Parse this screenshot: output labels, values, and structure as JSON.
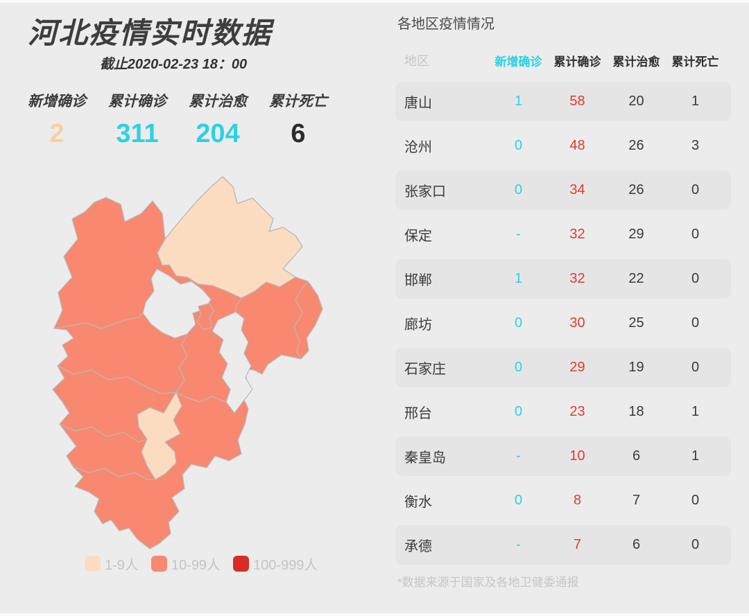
{
  "page": {
    "background": "#ececec"
  },
  "left_panel": {
    "title": "河北疫情实时数据",
    "subtitle": "截止2020-02-23 18：00",
    "stats": [
      {
        "label": "新增确诊",
        "value": "2",
        "color": "#f9cfa1"
      },
      {
        "label": "累计确诊",
        "value": "311",
        "color": "#2bd2e2"
      },
      {
        "label": "累计治愈",
        "value": "204",
        "color": "#2bd2e2"
      },
      {
        "label": "累计死亡",
        "value": "6",
        "color": "#2b2b2b"
      }
    ],
    "legend": [
      {
        "label": "1-9人",
        "color": "#fcdcc0"
      },
      {
        "label": "10-99人",
        "color": "#f88870"
      },
      {
        "label": "100-999人",
        "color": "#d92d24"
      }
    ]
  },
  "map": {
    "province": "河北",
    "border_color": "#b9b9b9",
    "regions": [
      {
        "name": "张家口",
        "level": "10-99人",
        "color": "#f88870"
      },
      {
        "name": "承德",
        "level": "1-9人",
        "color": "#fcdcc0"
      },
      {
        "name": "秦皇岛",
        "level": "10-99人",
        "color": "#f88870"
      },
      {
        "name": "唐山",
        "level": "10-99人",
        "color": "#f88870"
      },
      {
        "name": "廊坊",
        "level": "10-99人",
        "color": "#f88870"
      },
      {
        "name": "保定",
        "level": "10-99人",
        "color": "#f88870"
      },
      {
        "name": "沧州",
        "level": "10-99人",
        "color": "#f88870"
      },
      {
        "name": "石家庄",
        "level": "10-99人",
        "color": "#f88870"
      },
      {
        "name": "衡水",
        "level": "1-9人",
        "color": "#fcdcc0"
      },
      {
        "name": "邢台",
        "level": "10-99人",
        "color": "#f88870"
      },
      {
        "name": "邯郸",
        "level": "10-99人",
        "color": "#f88870"
      }
    ]
  },
  "right_panel": {
    "title": "各地区疫情情况",
    "table": {
      "headers": [
        "地区",
        "新增确诊",
        "累计确诊",
        "累计治愈",
        "累计死亡"
      ],
      "rows": [
        {
          "region": "唐山",
          "new": "1",
          "confirmed": "58",
          "cured": "20",
          "deaths": "1"
        },
        {
          "region": "沧州",
          "new": "0",
          "confirmed": "48",
          "cured": "26",
          "deaths": "3"
        },
        {
          "region": "张家口",
          "new": "0",
          "confirmed": "34",
          "cured": "26",
          "deaths": "0"
        },
        {
          "region": "保定",
          "new": "-",
          "confirmed": "32",
          "cured": "29",
          "deaths": "0"
        },
        {
          "region": "邯郸",
          "new": "1",
          "confirmed": "32",
          "cured": "22",
          "deaths": "0"
        },
        {
          "region": "廊坊",
          "new": "0",
          "confirmed": "30",
          "cured": "25",
          "deaths": "0"
        },
        {
          "region": "石家庄",
          "new": "0",
          "confirmed": "29",
          "cured": "19",
          "deaths": "0"
        },
        {
          "region": "邢台",
          "new": "0",
          "confirmed": "23",
          "cured": "18",
          "deaths": "1"
        },
        {
          "region": "秦皇岛",
          "new": "-",
          "confirmed": "10",
          "cured": "6",
          "deaths": "1"
        },
        {
          "region": "衡水",
          "new": "0",
          "confirmed": "8",
          "cured": "7",
          "deaths": "0"
        },
        {
          "region": "承德",
          "new": "-",
          "confirmed": "7",
          "cured": "6",
          "deaths": "0"
        }
      ]
    },
    "footnote": "*数据来源于国家及各地卫健委通报"
  },
  "colors": {
    "cyan": "#2bd2e2",
    "table_red": "#e23a2e",
    "stat_orange": "#f9cfa1",
    "salmon": "#f88870",
    "peach": "#fcdcc0",
    "legend_red": "#d92d24",
    "background": "#ececec",
    "stripe": "#e6e5e5"
  },
  "chart_data": [
    {
      "type": "heatmap",
      "subtype": "choropleth-map",
      "title": "河北疫情实时数据",
      "as_of": "截止2020-02-23 18：00",
      "totals": {
        "新增确诊": 2,
        "累计确诊": 311,
        "累计治愈": 204,
        "累计死亡": 6
      },
      "legend_position": "bottom-left",
      "legend_bins": [
        {
          "range": "1-9人",
          "color": "#fcdcc0"
        },
        {
          "range": "10-99人",
          "color": "#f88870"
        },
        {
          "range": "100-999人",
          "color": "#d92d24"
        }
      ],
      "series": [
        {
          "name": "累计确诊",
          "values": {
            "唐山": 58,
            "沧州": 48,
            "张家口": 34,
            "保定": 32,
            "邯郸": 32,
            "廊坊": 30,
            "石家庄": 29,
            "邢台": 23,
            "秦皇岛": 10,
            "衡水": 8,
            "承德": 7
          }
        }
      ]
    },
    {
      "type": "table",
      "title": "各地区疫情情况",
      "columns": [
        "地区",
        "新增确诊",
        "累计确诊",
        "累计治愈",
        "累计死亡"
      ],
      "rows": [
        [
          "唐山",
          "1",
          "58",
          "20",
          "1"
        ],
        [
          "沧州",
          "0",
          "48",
          "26",
          "3"
        ],
        [
          "张家口",
          "0",
          "34",
          "26",
          "0"
        ],
        [
          "保定",
          "-",
          "32",
          "29",
          "0"
        ],
        [
          "邯郸",
          "1",
          "32",
          "22",
          "0"
        ],
        [
          "廊坊",
          "0",
          "30",
          "25",
          "0"
        ],
        [
          "石家庄",
          "0",
          "29",
          "19",
          "0"
        ],
        [
          "邢台",
          "0",
          "23",
          "18",
          "1"
        ],
        [
          "秦皇岛",
          "-",
          "10",
          "6",
          "1"
        ],
        [
          "衡水",
          "0",
          "8",
          "7",
          "0"
        ],
        [
          "承德",
          "-",
          "7",
          "6",
          "0"
        ]
      ]
    }
  ]
}
